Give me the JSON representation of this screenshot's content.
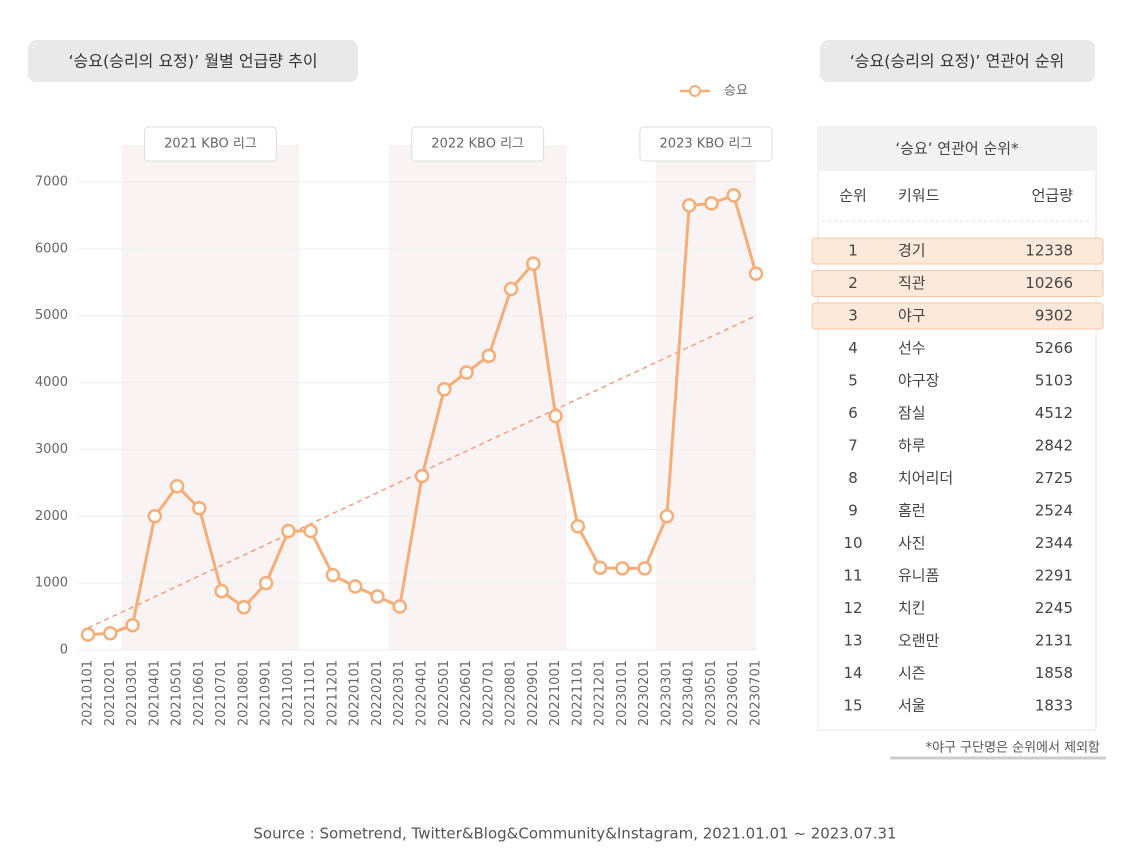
{
  "chart_data": {
    "type": "line",
    "title": "‘승요(승리의 요정)’ 월별 언급량 추이",
    "categories": [
      "20210101",
      "20210201",
      "20210301",
      "20210401",
      "20210501",
      "20210601",
      "20210701",
      "20210801",
      "20210901",
      "20211001",
      "20211101",
      "20211201",
      "20220101",
      "20220201",
      "20220301",
      "20220401",
      "20220501",
      "20220601",
      "20220701",
      "20220801",
      "20220901",
      "20221001",
      "20221101",
      "20221201",
      "20230101",
      "20230201",
      "20230301",
      "20230401",
      "20230501",
      "20230601",
      "20230701"
    ],
    "series": [
      {
        "name": "승요",
        "color": "#f7ad78",
        "values": [
          230,
          250,
          370,
          2000,
          2450,
          2120,
          880,
          640,
          1000,
          1780,
          1780,
          1120,
          950,
          800,
          650,
          2600,
          3900,
          4150,
          4400,
          5400,
          5780,
          3500,
          1850,
          1230,
          1220,
          1220,
          2000,
          6650,
          6680,
          6800,
          5630
        ]
      }
    ],
    "trend": {
      "color": "#f59d80",
      "values": [
        330,
        5000
      ]
    },
    "bands": [
      {
        "label": "2021 KBO 리그",
        "start": "20210301",
        "end": "20211001"
      },
      {
        "label": "2022 KBO 리그",
        "start": "20220301",
        "end": "20221001"
      },
      {
        "label": "2023 KBO 리그",
        "start": "20230301",
        "end": "20230701"
      }
    ],
    "ylim": [
      0,
      7000
    ],
    "yticks": [
      0,
      1000,
      2000,
      3000,
      4000,
      5000,
      6000,
      7000
    ],
    "grid": true,
    "legend": "top-right"
  },
  "table": {
    "section_title": "‘승요(승리의 요정)’ 연관어 순위",
    "title": "‘승요’ 연관어 순위*",
    "columns": [
      "순위",
      "키워드",
      "언급량"
    ],
    "rows": [
      [
        1,
        "경기",
        12338
      ],
      [
        2,
        "직관",
        10266
      ],
      [
        3,
        "야구",
        9302
      ],
      [
        4,
        "선수",
        5266
      ],
      [
        5,
        "야구장",
        5103
      ],
      [
        6,
        "잠실",
        4512
      ],
      [
        7,
        "하루",
        2842
      ],
      [
        8,
        "치어리더",
        2725
      ],
      [
        9,
        "홈런",
        2524
      ],
      [
        10,
        "사진",
        2344
      ],
      [
        11,
        "유니폼",
        2291
      ],
      [
        12,
        "치킨",
        2245
      ],
      [
        13,
        "오랜만",
        2131
      ],
      [
        14,
        "시즌",
        1858
      ],
      [
        15,
        "서울",
        1833
      ]
    ],
    "highlight_count": 3
  },
  "footnote": "*야구 구단명은 순위에서 제외함",
  "source": "Source : Sometrend, Twitter&Blog&Community&Instagram, 2021.01.01 ~ 2023.07.31"
}
